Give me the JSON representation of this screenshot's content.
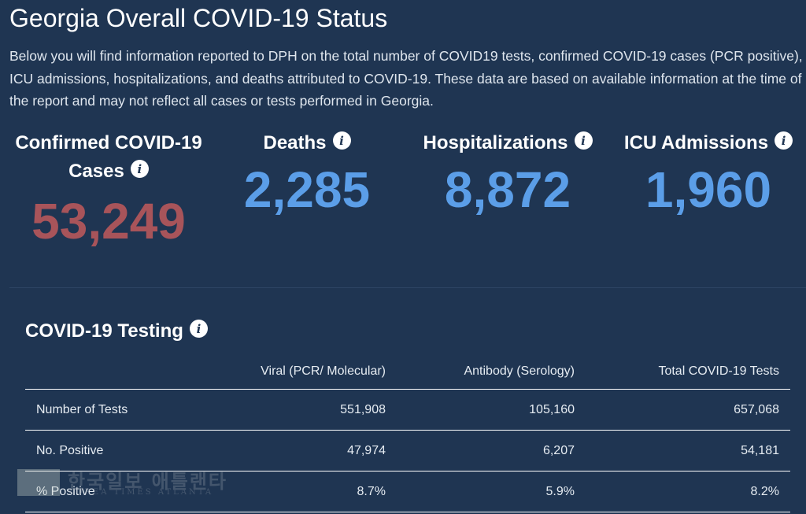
{
  "page": {
    "title": "Georgia Overall COVID-19 Status",
    "intro": "Below you will find information reported to DPH on the total number of COVID19 tests, confirmed COVID-19 cases (PCR positive), ICU admissions, hospitalizations, and deaths attributed to COVID-19. These data are based on available information at the time of the report and may not reflect all cases or tests performed in Georgia."
  },
  "stats": {
    "cases": {
      "label_line1": "Confirmed COVID-19",
      "label_line2": "Cases",
      "value": "53,249",
      "color": "#a8545a"
    },
    "deaths": {
      "label": "Deaths",
      "value": "2,285",
      "color": "#5b9ee8"
    },
    "hospitalizations": {
      "label": "Hospitalizations",
      "value": "8,872",
      "color": "#5b9ee8"
    },
    "icu": {
      "label": "ICU Admissions",
      "value": "1,960",
      "color": "#5b9ee8"
    }
  },
  "testing": {
    "title": "COVID-19 Testing",
    "columns": [
      "",
      "Viral (PCR/ Molecular)",
      "Antibody (Serology)",
      "Total COVID-19 Tests"
    ],
    "rows": [
      [
        "Number of Tests",
        "551,908",
        "105,160",
        "657,068"
      ],
      [
        "No. Positive",
        "47,974",
        "6,207",
        "54,181"
      ],
      [
        "% Positive",
        "8.7%",
        "5.9%",
        "8.2%"
      ]
    ]
  },
  "watermark": {
    "korean": "한국일보 애틀랜타",
    "english": "KOREA TIMES ATLANTA"
  },
  "icons": {
    "info": "info-icon"
  },
  "colors": {
    "background": "#1f3552",
    "accent": "#5b9ee8",
    "cases": "#a8545a"
  }
}
